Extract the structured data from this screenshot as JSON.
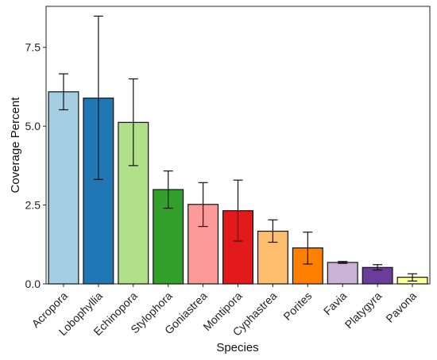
{
  "chart_data": {
    "type": "bar",
    "title": "",
    "xlabel": "Species",
    "ylabel": "Coverage Percent",
    "ylim": [
      0,
      8.8
    ],
    "yticks": [
      0,
      2.5,
      5,
      7.5
    ],
    "ytick_labels": [
      "0.0",
      "2.5",
      "5.0",
      "7.5"
    ],
    "grid": false,
    "legend": "none",
    "categories": [
      "Acropora",
      "Lobophyllia",
      "Echinopora",
      "Stylophora",
      "Goniastrea",
      "Montipora",
      "Cyphastrea",
      "Porites",
      "Favia",
      "Platygyra",
      "Pavona"
    ],
    "values": [
      6.09,
      5.89,
      5.12,
      2.99,
      2.52,
      2.32,
      1.67,
      1.14,
      0.68,
      0.52,
      0.21
    ],
    "error_low": [
      5.52,
      3.31,
      3.75,
      2.4,
      1.82,
      1.36,
      1.32,
      0.63,
      0.65,
      0.44,
      0.09
    ],
    "error_high": [
      6.66,
      8.49,
      6.5,
      3.58,
      3.21,
      3.29,
      2.03,
      1.64,
      0.71,
      0.61,
      0.32
    ],
    "colors": [
      "#a6cee3",
      "#1f78b4",
      "#b2df8a",
      "#33a02c",
      "#fb9a99",
      "#e31a1c",
      "#fdbf6f",
      "#ff7f00",
      "#cab2d6",
      "#6a3d9a",
      "#ffff99"
    ]
  }
}
